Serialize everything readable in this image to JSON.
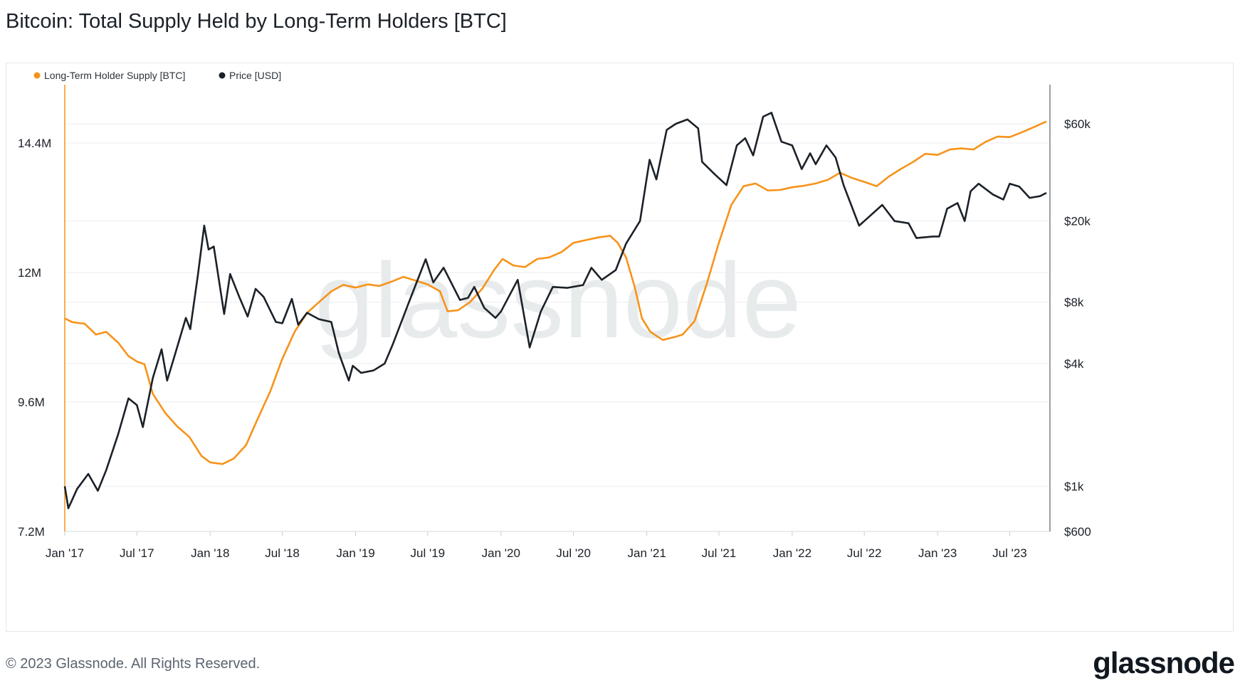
{
  "title": "Bitcoin: Total Supply Held by Long-Term Holders [BTC]",
  "footer": "© 2023 Glassnode. All Rights Reserved.",
  "brand": "glassnode",
  "watermark": "glassnode",
  "colors": {
    "supply": "#f7931a",
    "price": "#1b2128",
    "grid": "#eceef0",
    "watermark": "#e8ebec"
  },
  "chart_data": {
    "type": "line",
    "legend_position": "top-left",
    "grid": true,
    "x_ticks": [
      "Jan '17",
      "Jul '17",
      "Jan '18",
      "Jul '18",
      "Jan '19",
      "Jul '19",
      "Jan '20",
      "Jul '20",
      "Jan '21",
      "Jul '21",
      "Jan '22",
      "Jul '22",
      "Jan '23",
      "Jul '23"
    ],
    "y_left": {
      "ticks": [
        7200000,
        9600000,
        12000000,
        14400000
      ],
      "labels": [
        "7.2M",
        "9.6M",
        "12M",
        "14.4M"
      ],
      "range": [
        7200000,
        14400000
      ]
    },
    "y_right": {
      "scale": "log",
      "ticks": [
        600,
        1000,
        4000,
        8000,
        20000,
        60000
      ],
      "labels": [
        "$600",
        "$1k",
        "$4k",
        "$8k",
        "$20k",
        "$60k"
      ],
      "range": [
        600,
        60000
      ]
    },
    "series": [
      {
        "name": "Long-Term Holder Supply [BTC]",
        "axis": "left",
        "points": [
          [
            "2017-01-01",
            11150000
          ],
          [
            "2017-01-20",
            11080000
          ],
          [
            "2017-02-20",
            11050000
          ],
          [
            "2017-03-20",
            10850000
          ],
          [
            "2017-04-15",
            10900000
          ],
          [
            "2017-05-15",
            10700000
          ],
          [
            "2017-06-10",
            10450000
          ],
          [
            "2017-07-01",
            10350000
          ],
          [
            "2017-07-20",
            10300000
          ],
          [
            "2017-08-10",
            9750000
          ],
          [
            "2017-09-10",
            9400000
          ],
          [
            "2017-10-10",
            9150000
          ],
          [
            "2017-11-10",
            8950000
          ],
          [
            "2017-12-10",
            8600000
          ],
          [
            "2018-01-01",
            8480000
          ],
          [
            "2018-02-01",
            8450000
          ],
          [
            "2018-03-01",
            8550000
          ],
          [
            "2018-04-01",
            8800000
          ],
          [
            "2018-05-01",
            9300000
          ],
          [
            "2018-06-01",
            9800000
          ],
          [
            "2018-07-01",
            10400000
          ],
          [
            "2018-08-01",
            10900000
          ],
          [
            "2018-09-01",
            11250000
          ],
          [
            "2018-10-01",
            11450000
          ],
          [
            "2018-11-01",
            11650000
          ],
          [
            "2018-12-01",
            11770000
          ],
          [
            "2019-01-01",
            11720000
          ],
          [
            "2019-02-01",
            11780000
          ],
          [
            "2019-03-01",
            11750000
          ],
          [
            "2019-04-01",
            11830000
          ],
          [
            "2019-05-01",
            11920000
          ],
          [
            "2019-06-01",
            11850000
          ],
          [
            "2019-07-01",
            11780000
          ],
          [
            "2019-08-01",
            11650000
          ],
          [
            "2019-08-20",
            11280000
          ],
          [
            "2019-09-15",
            11300000
          ],
          [
            "2019-10-15",
            11450000
          ],
          [
            "2019-11-15",
            11700000
          ],
          [
            "2019-12-15",
            12050000
          ],
          [
            "2020-01-05",
            12250000
          ],
          [
            "2020-02-01",
            12130000
          ],
          [
            "2020-03-01",
            12100000
          ],
          [
            "2020-04-01",
            12250000
          ],
          [
            "2020-05-01",
            12280000
          ],
          [
            "2020-06-01",
            12380000
          ],
          [
            "2020-07-01",
            12550000
          ],
          [
            "2020-08-01",
            12600000
          ],
          [
            "2020-09-01",
            12650000
          ],
          [
            "2020-10-01",
            12680000
          ],
          [
            "2020-10-20",
            12550000
          ],
          [
            "2020-11-10",
            12280000
          ],
          [
            "2020-12-01",
            11750000
          ],
          [
            "2020-12-20",
            11150000
          ],
          [
            "2021-01-10",
            10900000
          ],
          [
            "2021-02-10",
            10750000
          ],
          [
            "2021-03-10",
            10800000
          ],
          [
            "2021-04-01",
            10850000
          ],
          [
            "2021-05-01",
            11100000
          ],
          [
            "2021-06-01",
            11800000
          ],
          [
            "2021-07-01",
            12550000
          ],
          [
            "2021-08-01",
            13250000
          ],
          [
            "2021-09-01",
            13600000
          ],
          [
            "2021-10-01",
            13650000
          ],
          [
            "2021-11-01",
            13520000
          ],
          [
            "2021-12-01",
            13530000
          ],
          [
            "2022-01-01",
            13580000
          ],
          [
            "2022-02-01",
            13610000
          ],
          [
            "2022-03-01",
            13650000
          ],
          [
            "2022-04-01",
            13720000
          ],
          [
            "2022-05-01",
            13850000
          ],
          [
            "2022-06-01",
            13750000
          ],
          [
            "2022-07-01",
            13680000
          ],
          [
            "2022-08-01",
            13600000
          ],
          [
            "2022-09-01",
            13780000
          ],
          [
            "2022-10-01",
            13920000
          ],
          [
            "2022-11-01",
            14050000
          ],
          [
            "2022-12-01",
            14200000
          ],
          [
            "2023-01-01",
            14180000
          ],
          [
            "2023-02-01",
            14280000
          ],
          [
            "2023-03-01",
            14300000
          ],
          [
            "2023-04-01",
            14280000
          ],
          [
            "2023-05-01",
            14420000
          ],
          [
            "2023-06-01",
            14520000
          ],
          [
            "2023-07-01",
            14510000
          ],
          [
            "2023-08-01",
            14600000
          ],
          [
            "2023-09-01",
            14700000
          ],
          [
            "2023-10-01",
            14800000
          ]
        ]
      },
      {
        "name": "Price [USD]",
        "axis": "right",
        "points": [
          [
            "2017-01-01",
            1000
          ],
          [
            "2017-01-10",
            780
          ],
          [
            "2017-02-01",
            970
          ],
          [
            "2017-03-01",
            1150
          ],
          [
            "2017-03-25",
            950
          ],
          [
            "2017-04-15",
            1200
          ],
          [
            "2017-05-15",
            1800
          ],
          [
            "2017-06-10",
            2700
          ],
          [
            "2017-07-01",
            2500
          ],
          [
            "2017-07-16",
            1950
          ],
          [
            "2017-08-10",
            3400
          ],
          [
            "2017-09-01",
            4700
          ],
          [
            "2017-09-15",
            3300
          ],
          [
            "2017-10-10",
            4800
          ],
          [
            "2017-11-01",
            6700
          ],
          [
            "2017-11-12",
            5900
          ],
          [
            "2017-12-01",
            10800
          ],
          [
            "2017-12-17",
            19000
          ],
          [
            "2017-12-28",
            14500
          ],
          [
            "2018-01-10",
            15000
          ],
          [
            "2018-02-05",
            7000
          ],
          [
            "2018-02-20",
            11000
          ],
          [
            "2018-03-15",
            8500
          ],
          [
            "2018-04-05",
            6800
          ],
          [
            "2018-04-25",
            9300
          ],
          [
            "2018-05-15",
            8500
          ],
          [
            "2018-06-15",
            6400
          ],
          [
            "2018-07-01",
            6300
          ],
          [
            "2018-07-25",
            8300
          ],
          [
            "2018-08-10",
            6200
          ],
          [
            "2018-09-01",
            7100
          ],
          [
            "2018-10-01",
            6600
          ],
          [
            "2018-11-01",
            6400
          ],
          [
            "2018-11-20",
            4500
          ],
          [
            "2018-12-15",
            3300
          ],
          [
            "2018-12-25",
            3900
          ],
          [
            "2019-01-15",
            3600
          ],
          [
            "2019-02-15",
            3700
          ],
          [
            "2019-03-15",
            4000
          ],
          [
            "2019-04-05",
            5000
          ],
          [
            "2019-05-15",
            8000
          ],
          [
            "2019-06-26",
            13000
          ],
          [
            "2019-07-15",
            10000
          ],
          [
            "2019-08-10",
            11800
          ],
          [
            "2019-09-20",
            8200
          ],
          [
            "2019-10-10",
            8400
          ],
          [
            "2019-10-26",
            9500
          ],
          [
            "2019-11-20",
            7500
          ],
          [
            "2019-12-18",
            6700
          ],
          [
            "2020-01-01",
            7200
          ],
          [
            "2020-02-12",
            10300
          ],
          [
            "2020-03-13",
            4800
          ],
          [
            "2020-04-10",
            7200
          ],
          [
            "2020-05-10",
            9500
          ],
          [
            "2020-06-15",
            9400
          ],
          [
            "2020-07-25",
            9700
          ],
          [
            "2020-08-15",
            11800
          ],
          [
            "2020-09-10",
            10300
          ],
          [
            "2020-10-15",
            11500
          ],
          [
            "2020-11-10",
            15500
          ],
          [
            "2020-12-15",
            20000
          ],
          [
            "2021-01-08",
            40000
          ],
          [
            "2021-01-25",
            32000
          ],
          [
            "2021-02-20",
            56000
          ],
          [
            "2021-03-15",
            60000
          ],
          [
            "2021-04-13",
            63000
          ],
          [
            "2021-05-10",
            57000
          ],
          [
            "2021-05-20",
            39000
          ],
          [
            "2021-06-20",
            34000
          ],
          [
            "2021-07-20",
            30000
          ],
          [
            "2021-08-15",
            47000
          ],
          [
            "2021-09-05",
            51000
          ],
          [
            "2021-09-25",
            42000
          ],
          [
            "2021-10-20",
            65000
          ],
          [
            "2021-11-10",
            68000
          ],
          [
            "2021-12-05",
            49000
          ],
          [
            "2022-01-01",
            47000
          ],
          [
            "2022-01-25",
            36000
          ],
          [
            "2022-02-15",
            43000
          ],
          [
            "2022-03-01",
            38000
          ],
          [
            "2022-03-28",
            47000
          ],
          [
            "2022-04-20",
            41000
          ],
          [
            "2022-05-10",
            30000
          ],
          [
            "2022-06-18",
            19000
          ],
          [
            "2022-07-01",
            20000
          ],
          [
            "2022-08-15",
            24000
          ],
          [
            "2022-09-15",
            20000
          ],
          [
            "2022-10-20",
            19500
          ],
          [
            "2022-11-09",
            16500
          ],
          [
            "2022-12-20",
            16800
          ],
          [
            "2023-01-05",
            16800
          ],
          [
            "2023-01-25",
            23000
          ],
          [
            "2023-02-20",
            24500
          ],
          [
            "2023-03-10",
            20000
          ],
          [
            "2023-03-25",
            28000
          ],
          [
            "2023-04-14",
            30500
          ],
          [
            "2023-05-20",
            27000
          ],
          [
            "2023-06-15",
            25500
          ],
          [
            "2023-07-01",
            30500
          ],
          [
            "2023-07-25",
            29500
          ],
          [
            "2023-08-20",
            26000
          ],
          [
            "2023-09-15",
            26500
          ],
          [
            "2023-10-01",
            27500
          ]
        ]
      }
    ]
  }
}
